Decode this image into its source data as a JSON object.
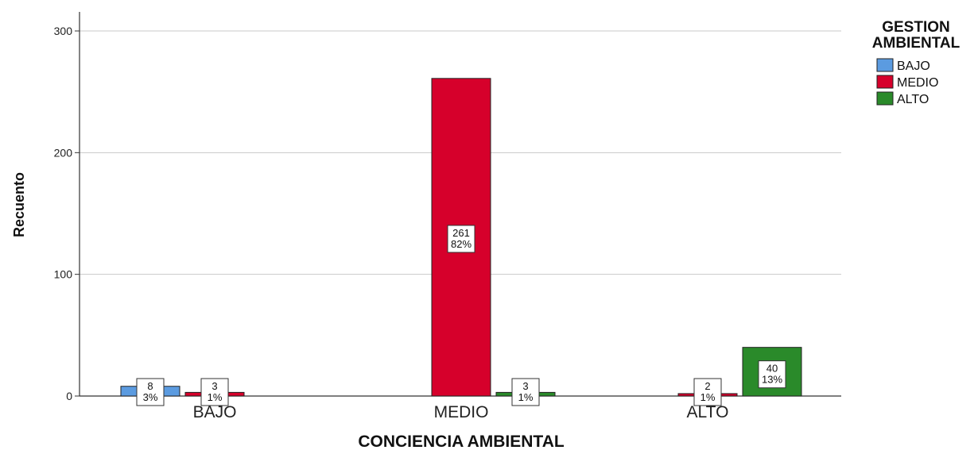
{
  "chart_data": {
    "type": "bar",
    "categories": [
      "BAJO",
      "MEDIO",
      "ALTO"
    ],
    "series": [
      {
        "name": "BAJO",
        "values": [
          8,
          null,
          null
        ],
        "labels": [
          "3%",
          null,
          null
        ],
        "color": "#5b9be0"
      },
      {
        "name": "MEDIO",
        "values": [
          3,
          261,
          2
        ],
        "labels": [
          "1%",
          "82%",
          "1%"
        ],
        "color": "#d6002b"
      },
      {
        "name": "ALTO",
        "values": [
          null,
          3,
          40
        ],
        "labels": [
          null,
          "1%",
          "13%"
        ],
        "color": "#2a8a2a"
      }
    ],
    "title": "",
    "xlabel": "CONCIENCIA AMBIENTAL",
    "ylabel": "Recuento",
    "ylim": [
      0,
      315
    ],
    "yticks": [
      0,
      100,
      200,
      300
    ],
    "grid": true,
    "legend_title": [
      "GESTION",
      "AMBIENTAL"
    ],
    "legend_placement": "top-right"
  }
}
